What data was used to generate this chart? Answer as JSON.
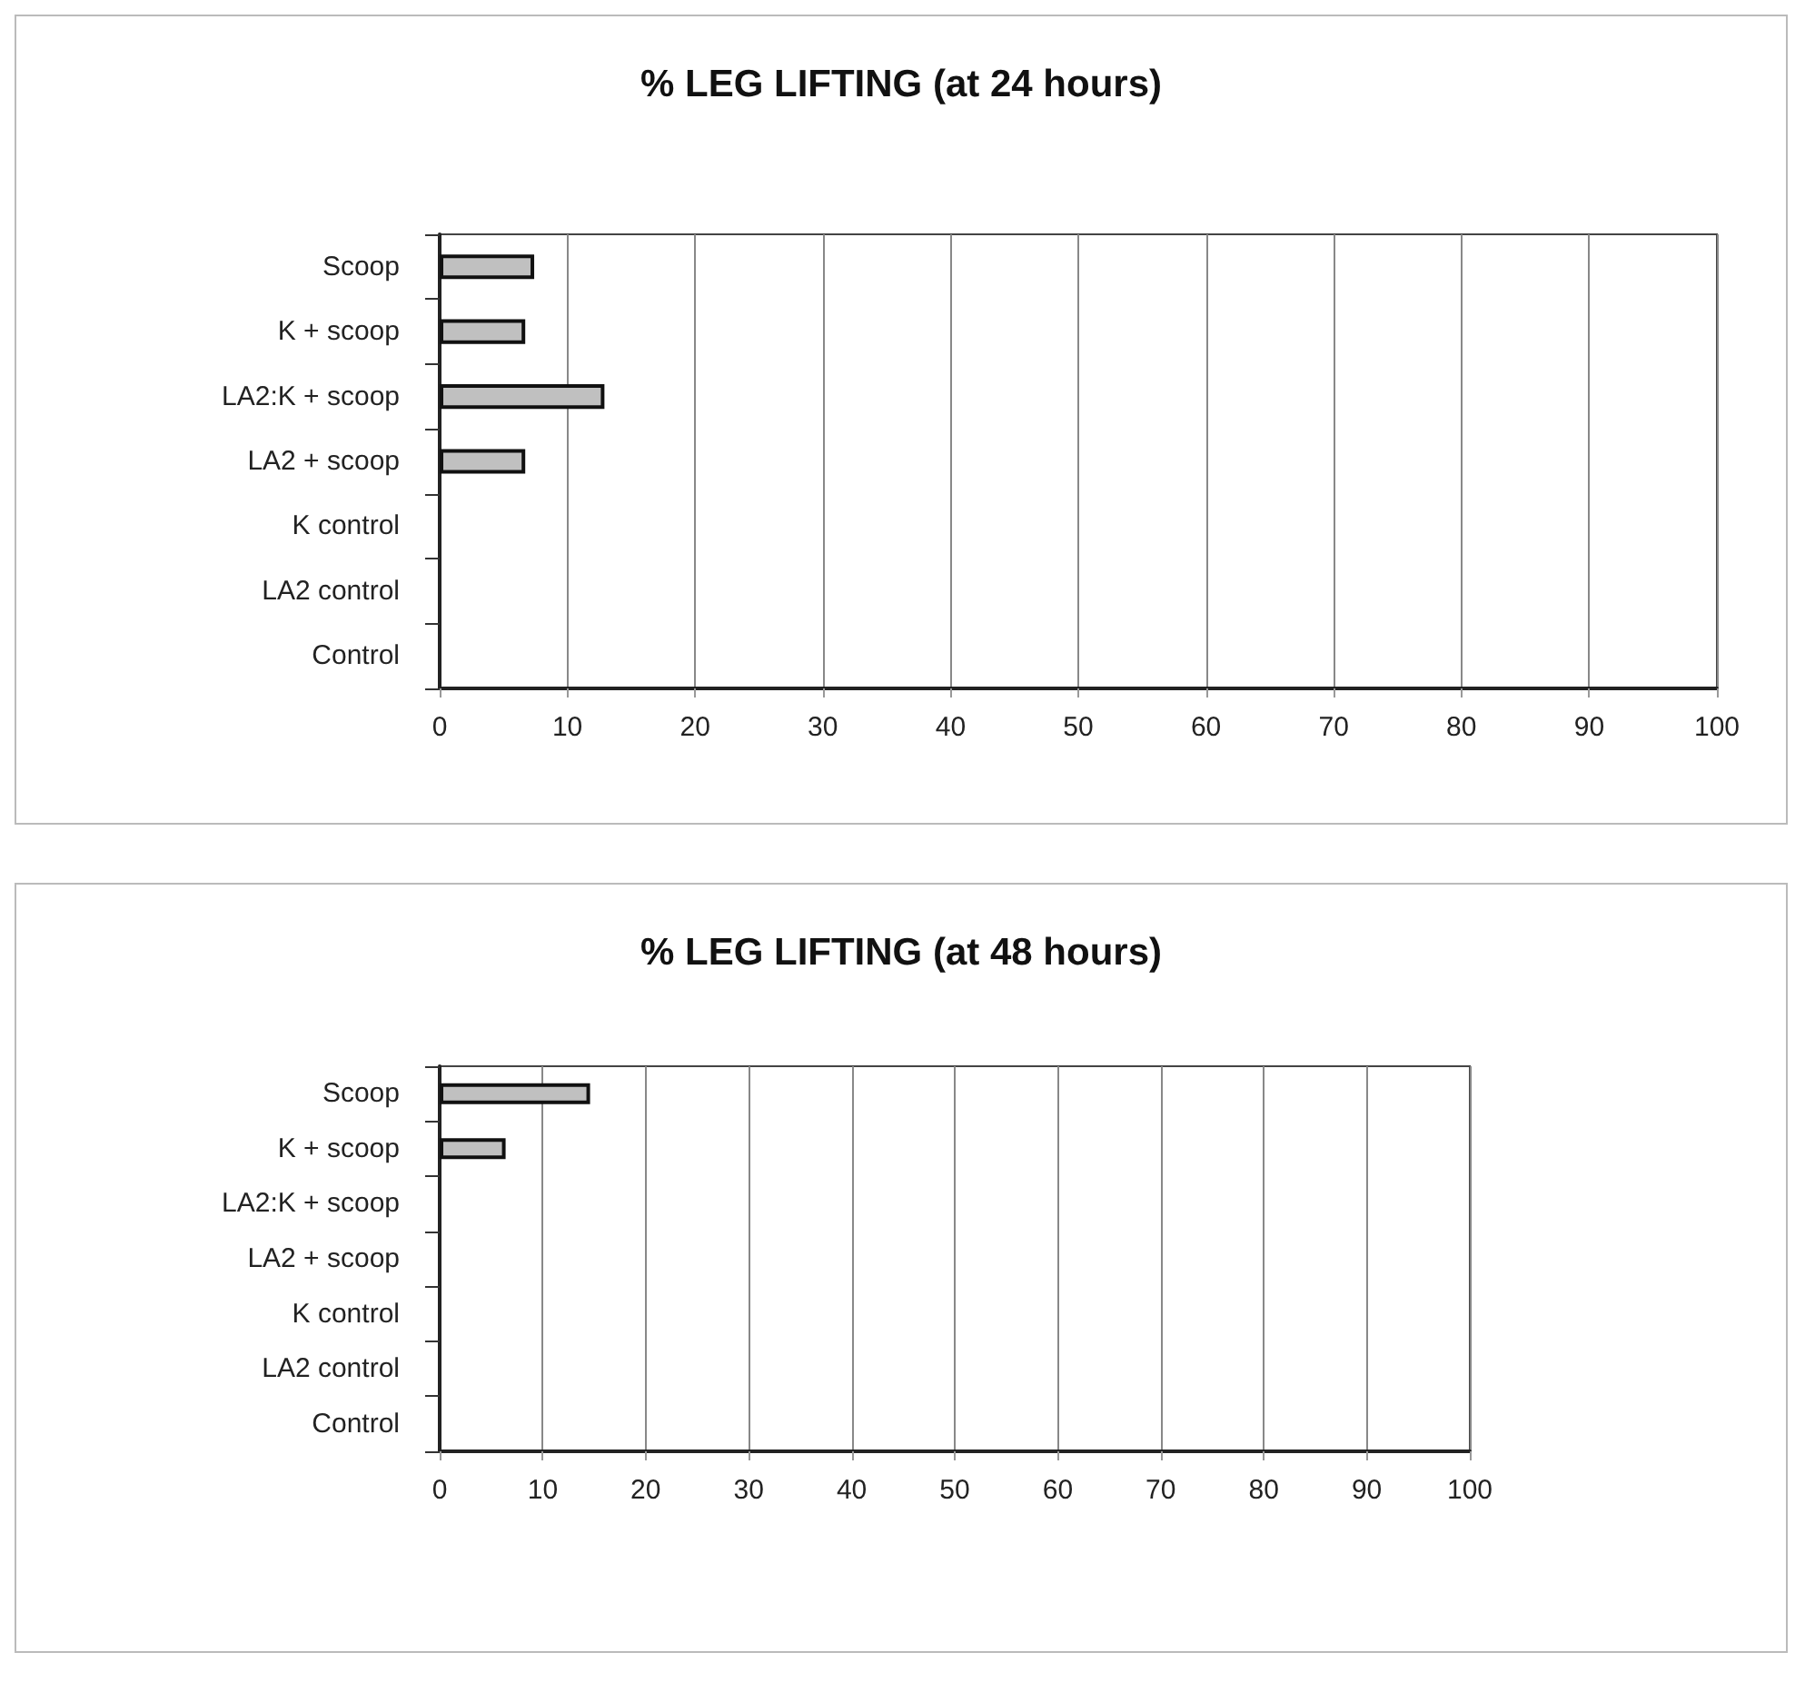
{
  "chart_data": [
    {
      "type": "bar",
      "orientation": "horizontal",
      "title": "% LEG LIFTING (at 24 hours)",
      "categories": [
        "Scoop",
        "K + scoop",
        "LA2:K + scoop",
        "LA2 + scoop",
        "K control",
        "LA2 control",
        "Control"
      ],
      "values": [
        7.4,
        6.7,
        12.9,
        6.7,
        0,
        0,
        0
      ],
      "color": "#c0c0c0",
      "xlim": [
        0,
        100
      ],
      "xticks": [
        0,
        10,
        20,
        30,
        40,
        50,
        60,
        70,
        80,
        90,
        100
      ],
      "grid": "x"
    },
    {
      "type": "bar",
      "orientation": "horizontal",
      "title": "% LEG LIFTING (at 48 hours)",
      "categories": [
        "Scoop",
        "K + scoop",
        "LA2:K + scoop",
        "LA2 + scoop",
        "K control",
        "LA2 control",
        "Control"
      ],
      "values": [
        14.6,
        6.4,
        0,
        0,
        0,
        0,
        0
      ],
      "color": "#c0c0c0",
      "xlim": [
        0,
        100
      ],
      "xticks": [
        0,
        10,
        20,
        30,
        40,
        50,
        60,
        70,
        80,
        90,
        100
      ],
      "grid": "x"
    }
  ]
}
